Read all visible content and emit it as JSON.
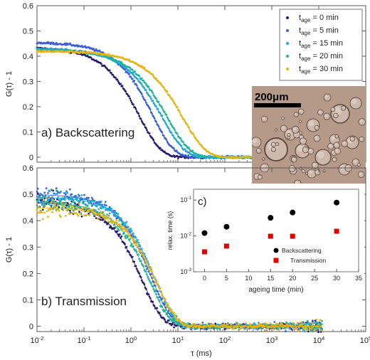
{
  "figure": {
    "image_caption": "200μm"
  },
  "chart_data": [
    {
      "type": "scatter",
      "panel_label": "a) Backscattering",
      "xlabel": "",
      "ylabel": "G(τ) - 1",
      "xscale": "log",
      "xlim": [
        0.01,
        100000
      ],
      "ylim": [
        -0.02,
        0.6
      ],
      "yticks": [
        "0",
        "0.1",
        "0.2",
        "0.3",
        "0.4",
        "0.5",
        "0.6"
      ],
      "legend": {
        "placement": "top-right",
        "prefix": "t",
        "subscript": "age"
      },
      "series": [
        {
          "name": "= 0 min",
          "color": "#2b1a6e",
          "plateau": 0.435,
          "tau": 3.2,
          "beta": 0.95,
          "noise": 0.004
        },
        {
          "name": "= 5 min",
          "color": "#3d5fd6",
          "plateau": 0.455,
          "tau": 6.0,
          "beta": 0.95,
          "noise": 0.004
        },
        {
          "name": "= 15 min",
          "color": "#23a8d8",
          "plateau": 0.43,
          "tau": 10.0,
          "beta": 0.9,
          "noise": 0.004
        },
        {
          "name": "= 20 min",
          "color": "#22b49a",
          "plateau": 0.425,
          "tau": 13.0,
          "beta": 0.9,
          "noise": 0.004
        },
        {
          "name": "= 30 min",
          "color": "#e5b416",
          "plateau": 0.42,
          "tau": 28.0,
          "beta": 0.9,
          "noise": 0.004
        }
      ]
    },
    {
      "type": "scatter",
      "panel_label": "b) Transmission",
      "xlabel": "τ (ms)",
      "ylabel": "G(τ) - 1",
      "xscale": "log",
      "xlim": [
        0.01,
        100000
      ],
      "ylim": [
        -0.02,
        0.6
      ],
      "xticks": [
        "10-2",
        "10-1",
        "100",
        "101",
        "102",
        "103",
        "104",
        "105"
      ],
      "yticks": [
        "0",
        "0.1",
        "0.2",
        "0.3",
        "0.4",
        "0.5",
        "0.6"
      ],
      "series": [
        {
          "name": "= 0 min",
          "color": "#2b1a6e",
          "plateau": 0.47,
          "tau": 3.5,
          "beta": 1.0,
          "noise": 0.035
        },
        {
          "name": "= 5 min",
          "color": "#3d5fd6",
          "plateau": 0.5,
          "tau": 5.5,
          "beta": 1.0,
          "noise": 0.035
        },
        {
          "name": "= 15 min",
          "color": "#23a8d8",
          "plateau": 0.49,
          "tau": 6.5,
          "beta": 1.0,
          "noise": 0.035
        },
        {
          "name": "= 20 min",
          "color": "#22b49a",
          "plateau": 0.47,
          "tau": 5.0,
          "beta": 1.0,
          "noise": 0.035
        },
        {
          "name": "= 30 min",
          "color": "#e5b416",
          "plateau": 0.45,
          "tau": 7.0,
          "beta": 1.0,
          "noise": 0.035
        }
      ]
    },
    {
      "type": "scatter",
      "panel_label": "c)",
      "xlabel": "ageing time (min)",
      "ylabel": "relax. time (s)",
      "yscale": "log",
      "xlim": [
        -2.5,
        35
      ],
      "ylim": [
        0.001,
        0.2
      ],
      "xticks": [
        "0",
        "5",
        "10",
        "15",
        "20",
        "25",
        "30",
        "35"
      ],
      "yticks": [
        "10-3",
        "10-2",
        "10-1"
      ],
      "legend": {
        "placement": "bottom-right"
      },
      "series": [
        {
          "name": "Backscattering",
          "marker": "circle",
          "color": "#000000",
          "x": [
            0,
            5,
            15,
            20,
            30
          ],
          "y": [
            0.012,
            0.018,
            0.032,
            0.045,
            0.085
          ]
        },
        {
          "name": "Transmission",
          "marker": "square",
          "color": "#e00000",
          "x": [
            0,
            5,
            15,
            20,
            30
          ],
          "y": [
            0.0036,
            0.0052,
            0.0098,
            0.0098,
            0.0135
          ]
        }
      ]
    }
  ]
}
